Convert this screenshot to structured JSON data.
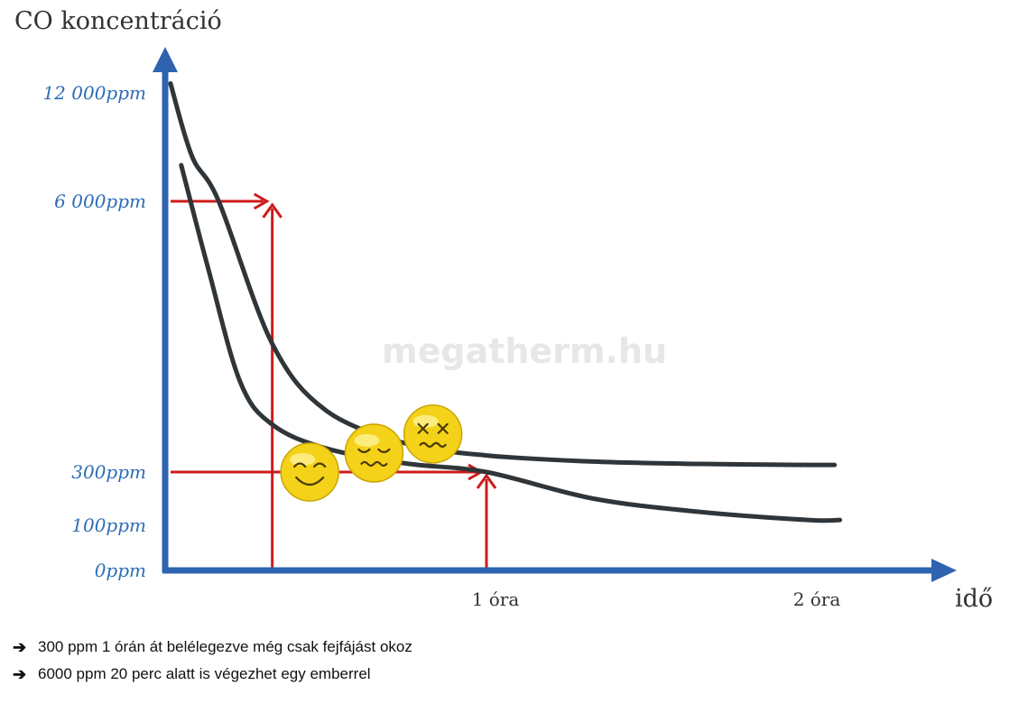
{
  "chart_data": {
    "type": "line",
    "ylabel": "CO koncentráció",
    "xlabel": "idő",
    "y_ticks": [
      {
        "label": "12 000ppm",
        "value": 12000
      },
      {
        "label": "6 000ppm",
        "value": 6000
      },
      {
        "label": "300ppm",
        "value": 300
      },
      {
        "label": "100ppm",
        "value": 100
      },
      {
        "label": "0ppm",
        "value": 0
      }
    ],
    "x_ticks": [
      {
        "label": "1 óra",
        "value": 60
      },
      {
        "label": "2 óra",
        "value": 120
      }
    ],
    "x_unit": "min",
    "series": [
      {
        "x": [
          1,
          5,
          10,
          20,
          30,
          45,
          60,
          80,
          100,
          120,
          125
        ],
        "y": [
          12500,
          8500,
          6000,
          3000,
          1600,
          900,
          650,
          520,
          470,
          450,
          450
        ]
      },
      {
        "x": [
          3,
          8,
          14,
          20,
          30,
          45,
          60,
          80,
          100,
          120,
          126
        ],
        "y": [
          8000,
          4600,
          2200,
          1300,
          800,
          480,
          300,
          200,
          150,
          120,
          120
        ]
      }
    ],
    "markers": [
      {
        "level": "dead",
        "x": 50,
        "y": 1100,
        "icon": "dizzy-face-icon"
      },
      {
        "level": "sick",
        "x": 39,
        "y": 700,
        "icon": "sick-face-icon"
      },
      {
        "level": "ok",
        "x": 27,
        "y": 300,
        "icon": "smiling-face-icon"
      }
    ],
    "reference_lines": [
      {
        "from_y": 6000,
        "to_x": 20
      },
      {
        "from_y": 300,
        "to_x": 60
      }
    ],
    "colors": {
      "axis": "#2e63b0",
      "curve": "#2f3539",
      "reference": "#cc1b1b",
      "face": "#f5d21a",
      "face_edge": "#caa400"
    },
    "watermark": "megatherm.hu"
  },
  "notes": [
    "300 ppm 1 órán át belélegezve még csak fejfájást okoz",
    "6000 ppm 20 perc alatt is végezhet egy emberrel"
  ]
}
